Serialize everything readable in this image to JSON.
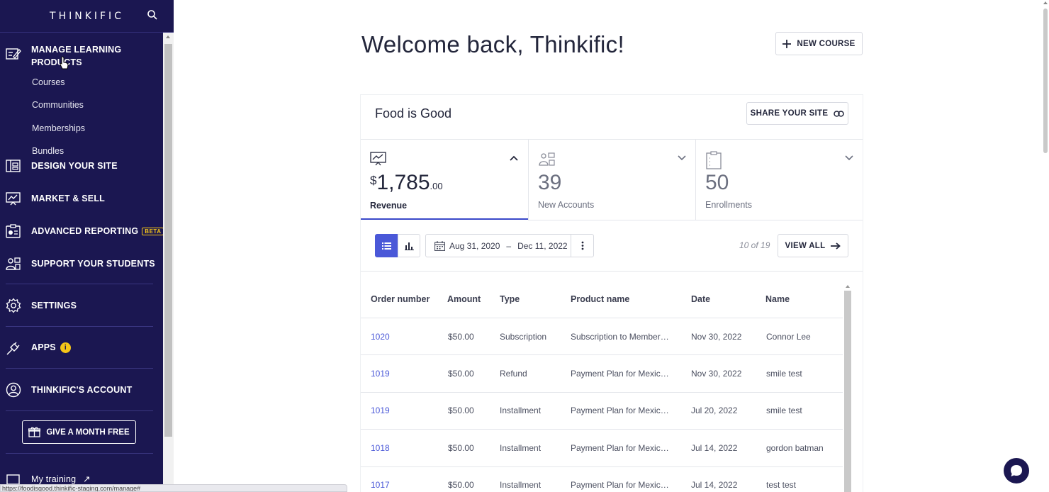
{
  "sidebar": {
    "logo": "THINKIFIC",
    "manage": {
      "label_line1": "MANAGE LEARNING",
      "label_line2": "PRODUCTS",
      "subitems": [
        "Courses",
        "Communities",
        "Memberships",
        "Bundles"
      ]
    },
    "design": "DESIGN YOUR SITE",
    "market": "MARKET & SELL",
    "reporting": "ADVANCED REPORTING",
    "reporting_badge": "BETA",
    "support": "SUPPORT YOUR STUDENTS",
    "settings": "SETTINGS",
    "apps": "APPS",
    "apps_badge": "i",
    "account": "THINKIFIC'S ACCOUNT",
    "gift_button": "GIVE A MONTH FREE",
    "my_training": "My training"
  },
  "status_url": "https://foodisgood.thinkific-staging.com/manage#",
  "main": {
    "welcome": "Welcome back, Thinkific!",
    "new_course": "NEW COURSE",
    "site_name": "Food is Good",
    "share_site": "SHARE YOUR SITE",
    "stats": [
      {
        "currency": "$",
        "whole": "1,785",
        "cents": ".00",
        "label": "Revenue",
        "icon": "presentation-chart-icon",
        "expanded": true
      },
      {
        "value": "39",
        "label": "New Accounts",
        "icon": "users-icon",
        "expanded": false
      },
      {
        "value": "50",
        "label": "Enrollments",
        "icon": "clipboard-icon",
        "expanded": false
      }
    ],
    "date_from": "Aug 31, 2020",
    "date_sep": "–",
    "date_to": "Dec 11, 2022",
    "count": "10 of 19",
    "view_all": "VIEW ALL",
    "table": {
      "columns": [
        "Order number",
        "Amount",
        "Type",
        "Product name",
        "Date",
        "Name"
      ],
      "rows": [
        [
          "1020",
          "$50.00",
          "Subscription",
          "Subscription to Member…",
          "Nov 30, 2022",
          "Connor Lee"
        ],
        [
          "1019",
          "$50.00",
          "Refund",
          "Payment Plan for Mexic…",
          "Nov 30, 2022",
          "smile test"
        ],
        [
          "1019",
          "$50.00",
          "Installment",
          "Payment Plan for Mexic…",
          "Jul 20, 2022",
          "smile test"
        ],
        [
          "1018",
          "$50.00",
          "Installment",
          "Payment Plan for Mexic…",
          "Jul 14, 2022",
          "gordon batman"
        ],
        [
          "1017",
          "$50.00",
          "Installment",
          "Payment Plan for Mexic…",
          "Jul 14, 2022",
          "test test"
        ]
      ]
    }
  },
  "colors": {
    "sidebar_bg": "#1b1751",
    "accent": "#4a58d8",
    "badge_yellow": "#f5c518"
  }
}
